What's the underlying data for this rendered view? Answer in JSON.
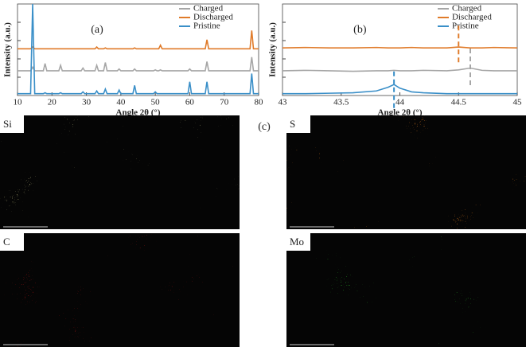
{
  "chart_data": [
    {
      "type": "line",
      "annotation": "(a)",
      "xlabel": "Angle 2θ (°)",
      "ylabel": "Intensity (a.u.)",
      "x": [
        10,
        13.8,
        14.4,
        15,
        17.5,
        18,
        18.5,
        22,
        22.5,
        23,
        28.5,
        29,
        29.5,
        32.5,
        33,
        33.5,
        35,
        35.5,
        36,
        39,
        39.5,
        40,
        43.5,
        44,
        44.5,
        49.5,
        50,
        50.5,
        51,
        51.5,
        52,
        59.5,
        60,
        60.5,
        64.5,
        65,
        65.5,
        77.5,
        78,
        78.5,
        80
      ],
      "series": [
        {
          "name": "Charged",
          "color": "#a6a6a6",
          "values": [
            27,
            27,
            31,
            27,
            27,
            35,
            27,
            27,
            33,
            27,
            27,
            30,
            27,
            27,
            33,
            27,
            27,
            36,
            27,
            27,
            29,
            27,
            27,
            29,
            27,
            27,
            28,
            27,
            27,
            28,
            27,
            27,
            29,
            27,
            27,
            37,
            27,
            27,
            42,
            27,
            27
          ]
        },
        {
          "name": "Discharged",
          "color": "#e07b2a",
          "values": [
            51,
            51,
            53,
            51,
            51,
            51,
            51,
            51,
            51,
            51,
            51,
            51,
            51,
            51,
            53,
            51,
            51,
            52,
            51,
            51,
            51,
            51,
            51,
            52,
            51,
            51,
            51,
            51,
            51,
            55,
            51,
            51,
            51,
            51,
            51,
            61,
            51,
            51,
            71,
            51,
            51
          ]
        },
        {
          "name": "Pristine",
          "color": "#3a8fc8",
          "values": [
            2,
            2,
            100,
            2,
            2,
            3,
            2,
            2,
            3,
            2,
            2,
            4,
            2,
            2,
            5,
            2,
            2,
            7,
            2,
            2,
            6,
            2,
            2,
            11,
            2,
            2,
            4,
            2,
            2,
            2,
            2,
            2,
            15,
            2,
            2,
            15,
            2,
            2,
            24,
            2,
            2
          ]
        }
      ],
      "xlim": [
        10,
        80
      ],
      "xticks": [
        10,
        20,
        30,
        40,
        50,
        60,
        70,
        80
      ],
      "ylim": [
        0,
        100
      ]
    },
    {
      "type": "line",
      "annotation": "(b)",
      "xlabel": "Angle 2θ (°)",
      "ylabel": "Intensity (a.u.)",
      "x": [
        43,
        43.2,
        43.4,
        43.6,
        43.8,
        43.9,
        43.95,
        44,
        44.1,
        44.2,
        44.4,
        44.5,
        44.6,
        44.7,
        44.8,
        45
      ],
      "series": [
        {
          "name": "Charged",
          "color": "#a6a6a6",
          "values": [
            27,
            27.5,
            27,
            26.5,
            27,
            27,
            27.5,
            27,
            27,
            27.5,
            27,
            28,
            30,
            27.5,
            27,
            27
          ]
        },
        {
          "name": "Discharged",
          "color": "#e07b2a",
          "values": [
            52,
            52.5,
            52,
            52,
            52.5,
            52,
            52,
            52,
            52.5,
            52,
            52,
            53,
            52,
            52,
            52.5,
            52
          ]
        },
        {
          "name": "Pristine",
          "color": "#3a8fc8",
          "values": [
            2,
            2,
            2.5,
            3,
            5,
            9,
            12,
            8,
            4,
            3,
            2,
            2,
            2,
            2,
            2,
            2
          ]
        }
      ],
      "vlines": [
        {
          "x": 44.5,
          "color": "#e07b2a"
        },
        {
          "x": 44.6,
          "color": "#a6a6a6"
        },
        {
          "x": 43.95,
          "color": "#3a8fc8"
        }
      ],
      "xlim": [
        43,
        45
      ],
      "xticks": [
        43,
        {
          "value": 43.5,
          "label": "43.5"
        },
        44,
        {
          "value": 44.5,
          "label": "44.5"
        },
        45
      ],
      "ylim": [
        0,
        100
      ]
    }
  ],
  "panel_label": "(c)",
  "maps": [
    {
      "label": "Si",
      "color": "#e6e49a"
    },
    {
      "label": "C",
      "color": "#e01818"
    },
    {
      "label": "S",
      "color": "#f08420"
    },
    {
      "label": "Mo",
      "color": "#30e030"
    }
  ]
}
